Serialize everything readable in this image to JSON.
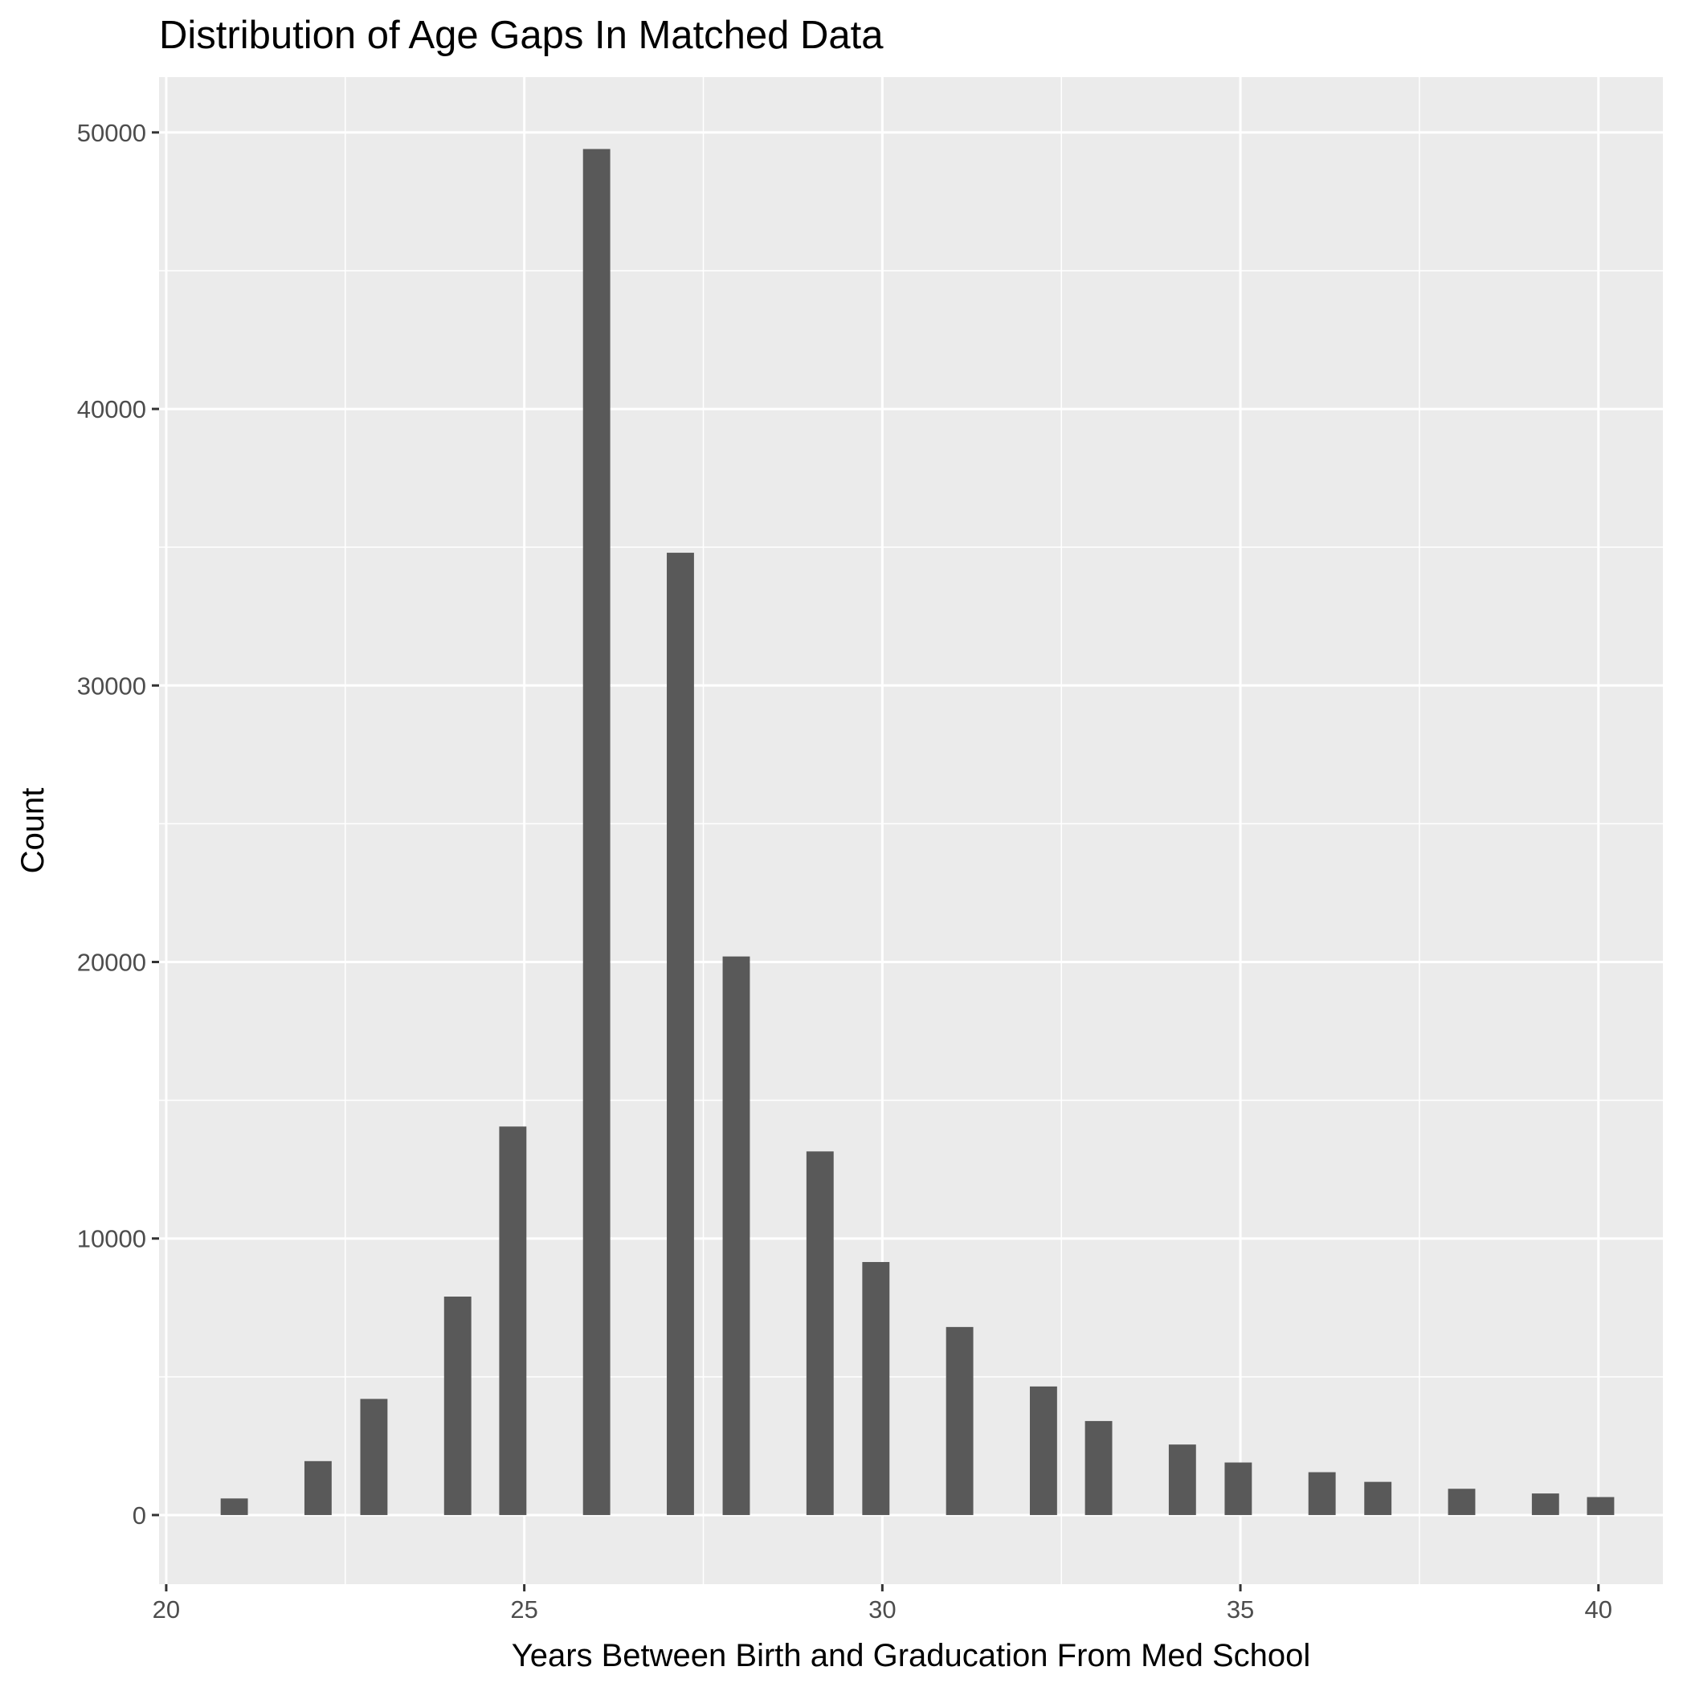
{
  "chart_data": {
    "type": "bar",
    "title": "Distribution of Age Gaps In Matched Data",
    "xlabel": "Years Between Birth and Graducation From Med School",
    "ylabel": "Count",
    "xlim": [
      19.9,
      40.9
    ],
    "ylim": [
      -2500,
      52000
    ],
    "x_ticks": [
      20,
      25,
      30,
      35,
      40
    ],
    "y_ticks": [
      0,
      10000,
      20000,
      30000,
      40000,
      50000
    ],
    "x_tick_labels": [
      "20",
      "25",
      "30",
      "35",
      "40"
    ],
    "y_tick_labels": [
      "0",
      "10000",
      "20000",
      "30000",
      "40000",
      "50000"
    ],
    "bar_width": 0.38,
    "grid": true,
    "colors": {
      "panel": "#ebebeb",
      "grid": "#ffffff",
      "bar": "#595959",
      "tick": "#333333"
    },
    "bars": [
      {
        "x": 20.95,
        "value": 600
      },
      {
        "x": 22.12,
        "value": 1950
      },
      {
        "x": 22.9,
        "value": 4200
      },
      {
        "x": 24.07,
        "value": 7900
      },
      {
        "x": 24.84,
        "value": 14050
      },
      {
        "x": 26.01,
        "value": 49400
      },
      {
        "x": 27.18,
        "value": 34800
      },
      {
        "x": 27.96,
        "value": 20200
      },
      {
        "x": 29.13,
        "value": 13150
      },
      {
        "x": 29.91,
        "value": 9150
      },
      {
        "x": 31.08,
        "value": 6800
      },
      {
        "x": 32.25,
        "value": 4650
      },
      {
        "x": 33.02,
        "value": 3400
      },
      {
        "x": 34.19,
        "value": 2550
      },
      {
        "x": 34.97,
        "value": 1900
      },
      {
        "x": 36.14,
        "value": 1550
      },
      {
        "x": 36.92,
        "value": 1200
      },
      {
        "x": 38.09,
        "value": 950
      },
      {
        "x": 39.26,
        "value": 780
      },
      {
        "x": 40.03,
        "value": 650
      }
    ]
  }
}
